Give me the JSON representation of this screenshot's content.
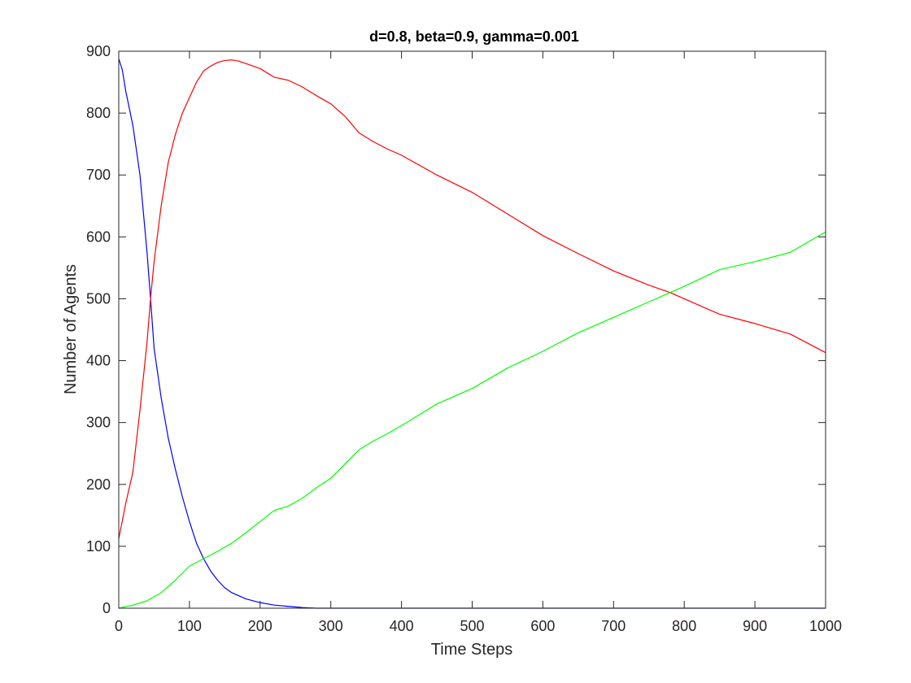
{
  "chart_data": {
    "type": "line",
    "title": "d=0.8, beta=0.9, gamma=0.001",
    "xlabel": "Time Steps",
    "ylabel": "Number of Agents",
    "xlim": [
      0,
      1000
    ],
    "ylim": [
      0,
      900
    ],
    "xticks": [
      0,
      100,
      200,
      300,
      400,
      500,
      600,
      700,
      800,
      900,
      1000
    ],
    "yticks": [
      0,
      100,
      200,
      300,
      400,
      500,
      600,
      700,
      800,
      900
    ],
    "grid": false,
    "legend": "none",
    "series": [
      {
        "color": "#0000ff",
        "x": [
          0,
          5,
          10,
          20,
          30,
          40,
          45,
          50,
          60,
          70,
          80,
          90,
          100,
          110,
          120,
          130,
          140,
          150,
          160,
          180,
          200,
          220,
          240,
          260,
          280,
          300,
          400,
          500,
          600,
          700,
          800,
          900,
          1000
        ],
        "y": [
          888,
          870,
          835,
          780,
          700,
          575,
          500,
          420,
          340,
          275,
          225,
          180,
          140,
          105,
          80,
          60,
          45,
          33,
          25,
          15,
          9,
          5,
          3,
          1,
          0,
          0,
          0,
          0,
          0,
          0,
          0,
          0,
          0
        ]
      },
      {
        "color": "#ff0000",
        "x": [
          0,
          10,
          20,
          30,
          40,
          45,
          50,
          60,
          70,
          80,
          90,
          100,
          110,
          120,
          130,
          140,
          150,
          160,
          170,
          180,
          200,
          220,
          240,
          260,
          280,
          300,
          320,
          340,
          360,
          380,
          400,
          450,
          500,
          550,
          600,
          650,
          700,
          750,
          780,
          800,
          850,
          900,
          950,
          1000
        ],
        "y": [
          112,
          170,
          220,
          320,
          430,
          500,
          560,
          650,
          720,
          765,
          800,
          825,
          850,
          868,
          876,
          882,
          885,
          886,
          884,
          880,
          872,
          858,
          853,
          842,
          828,
          815,
          795,
          768,
          754,
          742,
          732,
          700,
          672,
          637,
          602,
          573,
          545,
          522,
          510,
          500,
          475,
          460,
          443,
          413
        ]
      },
      {
        "color": "#00ff00",
        "x": [
          0,
          20,
          40,
          60,
          80,
          100,
          120,
          140,
          160,
          180,
          200,
          220,
          240,
          260,
          280,
          300,
          320,
          340,
          360,
          380,
          400,
          450,
          500,
          550,
          600,
          650,
          700,
          750,
          780,
          800,
          850,
          900,
          950,
          1000
        ],
        "y": [
          0,
          5,
          12,
          25,
          45,
          68,
          80,
          92,
          105,
          122,
          140,
          158,
          165,
          178,
          195,
          210,
          233,
          256,
          270,
          282,
          295,
          330,
          355,
          388,
          415,
          445,
          470,
          495,
          510,
          520,
          547,
          560,
          575,
          608
        ]
      }
    ]
  }
}
